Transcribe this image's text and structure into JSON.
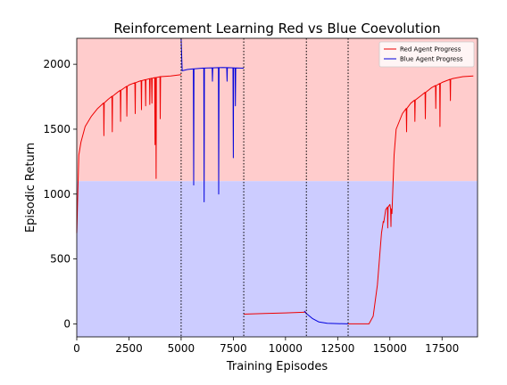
{
  "chart_data": {
    "type": "line",
    "title": "Reinforcement Learning Red vs Blue Coevolution",
    "xlabel": "Training Episodes",
    "ylabel": "Episodic Return",
    "xlim": [
      0,
      19200
    ],
    "ylim": [
      -100,
      2200
    ],
    "xticks": [
      0,
      2500,
      5000,
      7500,
      10000,
      12500,
      15000,
      17500
    ],
    "yticks": [
      0,
      500,
      1000,
      1500,
      2000
    ],
    "grid": false,
    "legend_position": "top-right",
    "background_regions": [
      {
        "name": "red-region",
        "y_from": 1100,
        "y_to": 2200,
        "color": "#ffcccc"
      },
      {
        "name": "blue-region",
        "y_from": -100,
        "y_to": 1100,
        "color": "#ccccff"
      }
    ],
    "phase_boundaries": [
      5000,
      8000,
      11000,
      13000
    ],
    "series": [
      {
        "name": "Red Agent Progress",
        "color": "#ee0000",
        "segments": [
          {
            "x": [
              0,
              100,
              200,
              400,
              700,
              1000,
              1500,
              2000,
              2500,
              3000,
              3500,
              4000,
              4500,
              5000
            ],
            "y": [
              700,
              1300,
              1400,
              1520,
              1600,
              1660,
              1730,
              1790,
              1840,
              1870,
              1890,
              1905,
              1910,
              1920
            ],
            "spikes": [
              [
                1300,
                1450
              ],
              [
                1700,
                1480
              ],
              [
                2100,
                1560
              ],
              [
                2400,
                1600
              ],
              [
                2800,
                1620
              ],
              [
                3100,
                1650
              ],
              [
                3300,
                1680
              ],
              [
                3500,
                1690
              ],
              [
                3600,
                1700
              ],
              [
                3750,
                1380
              ],
              [
                3800,
                1120
              ],
              [
                4000,
                1580
              ]
            ]
          },
          {
            "x": [
              8000,
              9000,
              10000,
              11000
            ],
            "y": [
              75,
              80,
              85,
              90
            ],
            "spikes": []
          },
          {
            "x": [
              13000,
              14000,
              14200,
              14400,
              14500,
              14600,
              14800,
              15000,
              15100,
              15200,
              15300,
              15600,
              16000,
              16500,
              17000,
              17500,
              18000,
              18500,
              19000
            ],
            "y": [
              0,
              0,
              60,
              300,
              500,
              700,
              880,
              920,
              850,
              1300,
              1500,
              1620,
              1700,
              1760,
              1820,
              1860,
              1890,
              1905,
              1910
            ],
            "spikes": [
              [
                14700,
                780
              ],
              [
                14900,
                740
              ],
              [
                15050,
                750
              ],
              [
                15800,
                1480
              ],
              [
                16200,
                1560
              ],
              [
                16700,
                1580
              ],
              [
                17200,
                1660
              ],
              [
                17400,
                1520
              ],
              [
                17900,
                1720
              ]
            ]
          }
        ]
      },
      {
        "name": "Blue Agent Progress",
        "color": "#0000dd",
        "segments": [
          {
            "x": [
              5000,
              5050,
              5300,
              6000,
              7000,
              8000
            ],
            "y": [
              2200,
              1950,
              1960,
              1970,
              1975,
              1970
            ],
            "spikes": [
              [
                5600,
                1070
              ],
              [
                6100,
                940
              ],
              [
                6500,
                1870
              ],
              [
                6800,
                1000
              ],
              [
                7200,
                1870
              ],
              [
                7500,
                1280
              ],
              [
                7600,
                1680
              ]
            ]
          },
          {
            "x": [
              10900,
              11000,
              11300,
              11600,
              12000,
              12500,
              13000
            ],
            "y": [
              100,
              80,
              40,
              15,
              5,
              2,
              0
            ],
            "spikes": []
          }
        ]
      }
    ]
  }
}
